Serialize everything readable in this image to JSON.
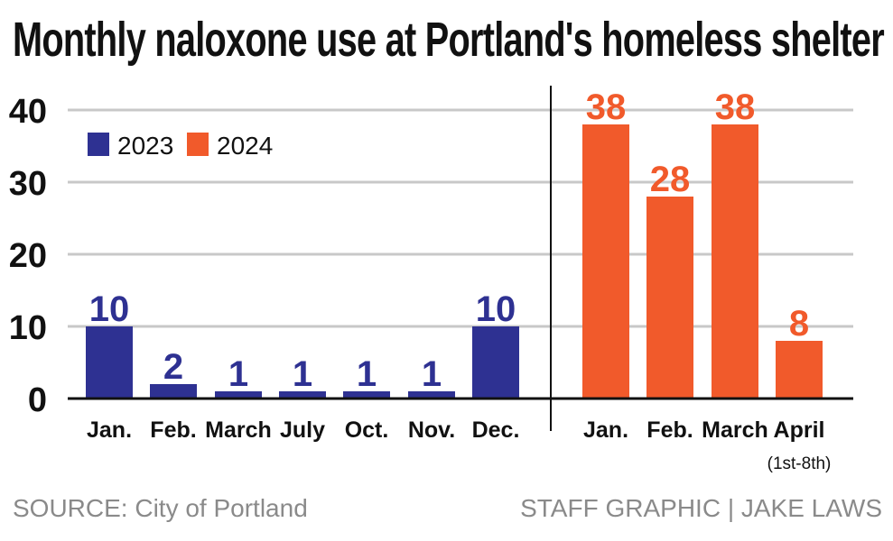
{
  "title": "Monthly naloxone use at Portland's homeless shelter",
  "source": "SOURCE: City of Portland",
  "credit": "STAFF GRAPHIC | JAKE LAWS",
  "colors": {
    "series_2023": "#2e3192",
    "series_2024": "#f15a2b",
    "grid": "#c8c8c8",
    "axis": "#111111"
  },
  "chart_data": {
    "type": "bar",
    "title": "Monthly naloxone use at Portland's homeless shelter",
    "xlabel": "",
    "ylabel": "",
    "ylim": [
      0,
      40
    ],
    "yticks": [
      0,
      10,
      20,
      30,
      40
    ],
    "grid": true,
    "legend": "top-left",
    "categories": [
      "Jan.",
      "Feb.",
      "March",
      "July",
      "Oct.",
      "Nov.",
      "Dec.",
      "Jan.",
      "Feb.",
      "March",
      "April"
    ],
    "category_notes": [
      "",
      "",
      "",
      "",
      "",
      "",
      "",
      "",
      "",
      "",
      "(1st-8th)"
    ],
    "series": [
      {
        "name": "2023",
        "color": "#2e3192",
        "values": [
          10,
          2,
          1,
          1,
          1,
          1,
          10,
          null,
          null,
          null,
          null
        ]
      },
      {
        "name": "2024",
        "color": "#f15a2b",
        "values": [
          null,
          null,
          null,
          null,
          null,
          null,
          null,
          38,
          28,
          38,
          8
        ]
      }
    ]
  }
}
